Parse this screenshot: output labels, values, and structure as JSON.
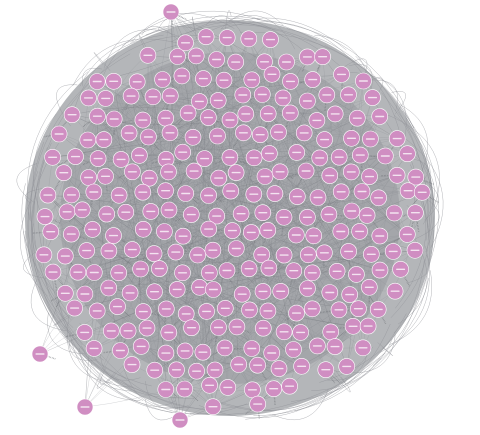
{
  "graph": {
    "colors": {
      "background": "#ffffff",
      "node_fill": "#d08ec2",
      "node_stroke": "#ffffff",
      "edge": "#8f9196",
      "edge_dense": "#6f7277",
      "hull": "#a7a9ad"
    },
    "node_shape": "circle",
    "node_labels_legible": false,
    "node_count_visible": 290,
    "edge_style": "curved"
  }
}
